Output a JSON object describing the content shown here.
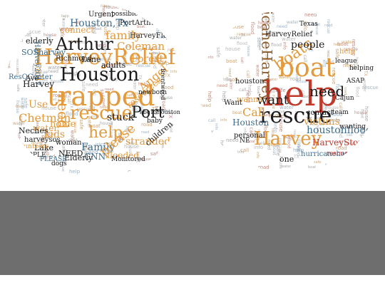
{
  "colors": {
    "orange": "#e29a3d",
    "red": "#c0392b",
    "black": "#1b1b1b",
    "blue": "#3e6d8e",
    "brown": "#8a5a2b",
    "gray_band": "#6e6e6e"
  },
  "left_cloud": {
    "words": [
      {
        "text": "trapped",
        "c": "orange"
      },
      {
        "text": "Houston",
        "c": "black"
      },
      {
        "text": "HarveyRelief",
        "c": "orange"
      },
      {
        "text": "Arthur",
        "c": "black"
      },
      {
        "text": "rescue",
        "c": "orange"
      },
      {
        "text": "Houston,Tx",
        "c": "blue"
      },
      {
        "text": "help",
        "c": "orange"
      },
      {
        "text": "Port",
        "c": "black"
      },
      {
        "text": "Coleman",
        "c": "orange"
      },
      {
        "text": "need",
        "c": "orange"
      },
      {
        "text": "family",
        "c": "orange"
      },
      {
        "text": "connect",
        "c": "orange"
      },
      {
        "text": "Chetman",
        "c": "orange"
      },
      {
        "text": "Family",
        "c": "blue"
      },
      {
        "text": "Angel",
        "c": "orange"
      },
      {
        "text": "please",
        "c": "orange"
      },
      {
        "text": "stranded",
        "c": "orange"
      },
      {
        "text": "SOSharvey",
        "c": "blue"
      },
      {
        "text": "PortArthur",
        "c": "black"
      },
      {
        "text": "Use",
        "c": "orange"
      },
      {
        "text": "resources",
        "c": "orange"
      },
      {
        "text": "stuck",
        "c": "black"
      },
      {
        "text": "kids",
        "c": "orange"
      },
      {
        "text": "home",
        "c": "orange"
      },
      {
        "text": "water",
        "c": "orange"
      },
      {
        "text": "Harvey",
        "c": "black"
      },
      {
        "text": "call",
        "c": "orange"
      },
      {
        "text": "Forest",
        "c": "orange"
      },
      {
        "text": "CNN",
        "c": "blue"
      },
      {
        "text": "flooded",
        "c": "orange"
      },
      {
        "text": "Elderly",
        "c": "black"
      },
      {
        "text": "elderly",
        "c": "black"
      },
      {
        "text": "Richmond",
        "c": "black"
      },
      {
        "text": "Urgent",
        "c": "black"
      },
      {
        "text": "HarveyFlood",
        "c": "black"
      },
      {
        "text": "Harvey2017",
        "c": "blue"
      },
      {
        "text": "ResQCenter",
        "c": "blue"
      },
      {
        "text": "Ave",
        "c": "black"
      },
      {
        "text": "adults",
        "c": "black"
      },
      {
        "text": "Lane",
        "c": "black"
      },
      {
        "text": "children",
        "c": "black"
      },
      {
        "text": "NEED",
        "c": "black"
      },
      {
        "text": "Lake",
        "c": "black"
      },
      {
        "text": "Neches",
        "c": "black"
      },
      {
        "text": "harveysos",
        "c": "black"
      },
      {
        "text": "woman",
        "c": "black"
      },
      {
        "text": "dogs",
        "c": "black"
      },
      {
        "text": "Monitored",
        "c": "black"
      },
      {
        "text": "possible",
        "c": "black"
      },
      {
        "text": "newborn",
        "c": "black"
      },
      {
        "text": "PEOPLE",
        "c": "black"
      },
      {
        "text": "volunteers",
        "c": "orange"
      },
      {
        "text": "abc13houston",
        "c": "black"
      },
      {
        "text": "Brentwood",
        "c": "black"
      },
      {
        "text": "PLEASE",
        "c": "blue"
      },
      {
        "text": "baby",
        "c": "black"
      }
    ]
  },
  "right_cloud": {
    "words": [
      {
        "text": "help",
        "c": "red"
      },
      {
        "text": "boat",
        "c": "orange"
      },
      {
        "text": "rescue",
        "c": "black"
      },
      {
        "text": "Harvey",
        "c": "orange"
      },
      {
        "text": "HurricaneHarvey",
        "c": "brown"
      },
      {
        "text": "boats",
        "c": "orange"
      },
      {
        "text": "need",
        "c": "black"
      },
      {
        "text": "want",
        "c": "black"
      },
      {
        "text": "people",
        "c": "black"
      },
      {
        "text": "Call",
        "c": "orange"
      },
      {
        "text": "houstonflood",
        "c": "blue"
      },
      {
        "text": "HarveyStorm",
        "c": "red"
      },
      {
        "text": "victims",
        "c": "orange"
      },
      {
        "text": "Houston",
        "c": "blue"
      },
      {
        "text": "HarveyRelief",
        "c": "black"
      },
      {
        "text": "hurricaneharvey",
        "c": "blue"
      },
      {
        "text": "personal",
        "c": "black"
      },
      {
        "text": "wanna",
        "c": "orange"
      },
      {
        "text": "one",
        "c": "black"
      },
      {
        "text": "contact",
        "c": "black"
      },
      {
        "text": "Texas",
        "c": "black"
      },
      {
        "text": "help",
        "c": "orange"
      },
      {
        "text": "houston",
        "c": "black"
      },
      {
        "text": "team",
        "c": "black"
      },
      {
        "text": "Cajun",
        "c": "black"
      },
      {
        "text": "wanting",
        "c": "black"
      },
      {
        "text": "helping",
        "c": "black"
      },
      {
        "text": "league",
        "c": "black"
      },
      {
        "text": "rescue",
        "c": "red"
      },
      {
        "text": "ASAP",
        "c": "black"
      },
      {
        "text": "NE",
        "c": "black"
      },
      {
        "text": "Want",
        "c": "black"
      }
    ]
  }
}
